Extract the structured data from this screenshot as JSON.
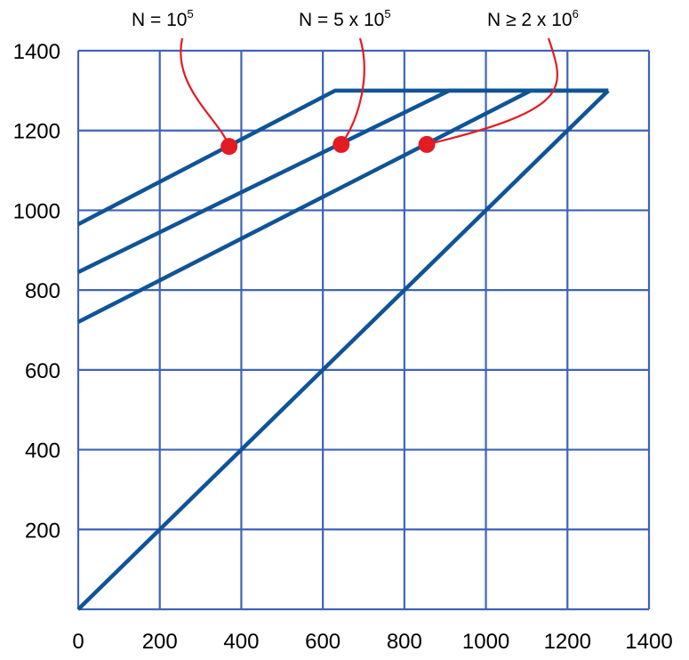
{
  "chart_data": {
    "type": "line",
    "title": "",
    "xlabel": "",
    "ylabel": "",
    "xlim": [
      0,
      1400
    ],
    "ylim": [
      0,
      1400
    ],
    "grid": true,
    "x_ticks": [
      "0",
      "200",
      "400",
      "600",
      "800",
      "1000",
      "1200",
      "1400"
    ],
    "y_ticks": [
      "200",
      "400",
      "600",
      "800",
      "1000",
      "1200",
      "1400"
    ],
    "colors": {
      "line": "#0f5496",
      "grid": "#3f63b9",
      "marker": "#e31b23"
    },
    "series": [
      {
        "x": [
          0,
          630,
          1300
        ],
        "y": [
          965,
          1300,
          1300
        ]
      },
      {
        "x": [
          0,
          910,
          1300
        ],
        "y": [
          845,
          1300,
          1300
        ]
      },
      {
        "x": [
          0,
          1110,
          1300
        ],
        "y": [
          720,
          1300,
          1300
        ]
      },
      {
        "x": [
          0,
          1300
        ],
        "y": [
          0,
          1300
        ]
      }
    ],
    "annotations": [
      {
        "label_main": "N = 10",
        "label_exp": "5",
        "point": [
          370,
          1160
        ]
      },
      {
        "label_main": "N = 5 x 10",
        "label_exp": "5",
        "point": [
          645,
          1165
        ]
      },
      {
        "label_main": "N ≥ 2 x 10",
        "label_exp": "6",
        "point": [
          855,
          1165
        ]
      }
    ]
  }
}
